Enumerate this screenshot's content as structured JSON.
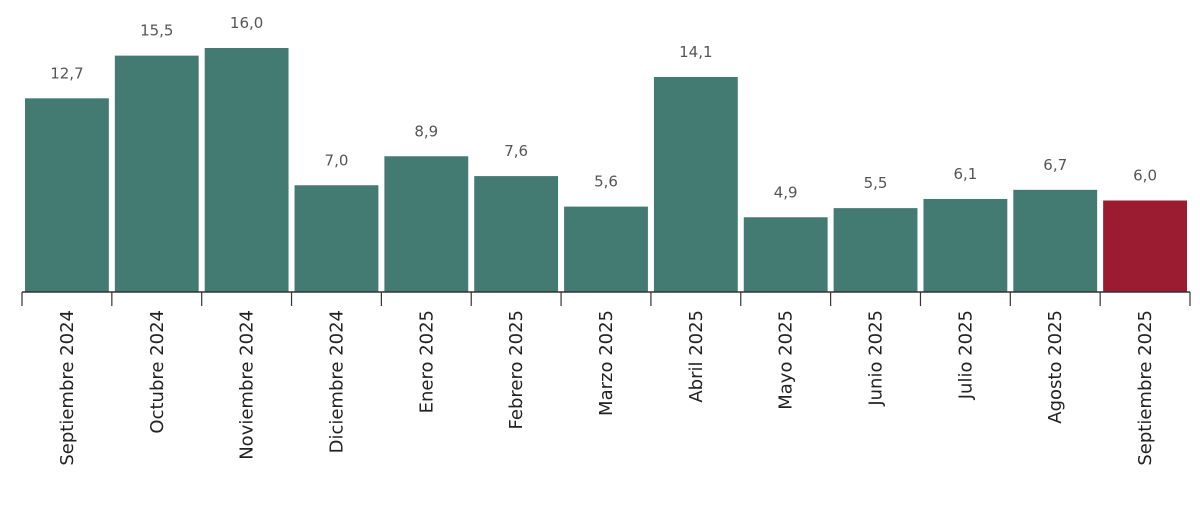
{
  "chart_data": {
    "type": "bar",
    "categories": [
      "Septiembre 2024",
      "Octubre 2024",
      "Noviembre 2024",
      "Diciembre 2024",
      "Enero 2025",
      "Febrero 2025",
      "Marzo 2025",
      "Abril 2025",
      "Mayo 2025",
      "Junio 2025",
      "Julio 2025",
      "Agosto 2025",
      "Septiembre 2025"
    ],
    "values": [
      12.7,
      15.5,
      16.0,
      7.0,
      8.9,
      7.6,
      5.6,
      14.1,
      4.9,
      5.5,
      6.1,
      6.7,
      6.0
    ],
    "value_labels": [
      "12,7",
      "15,5",
      "16,0",
      "7,0",
      "8,9",
      "7,6",
      "5,6",
      "14,1",
      "4,9",
      "5,5",
      "6,1",
      "6,7",
      "6,0"
    ],
    "colors": [
      "#437a72",
      "#437a72",
      "#437a72",
      "#437a72",
      "#437a72",
      "#437a72",
      "#437a72",
      "#437a72",
      "#437a72",
      "#437a72",
      "#437a72",
      "#437a72",
      "#9b1b30"
    ]
  }
}
